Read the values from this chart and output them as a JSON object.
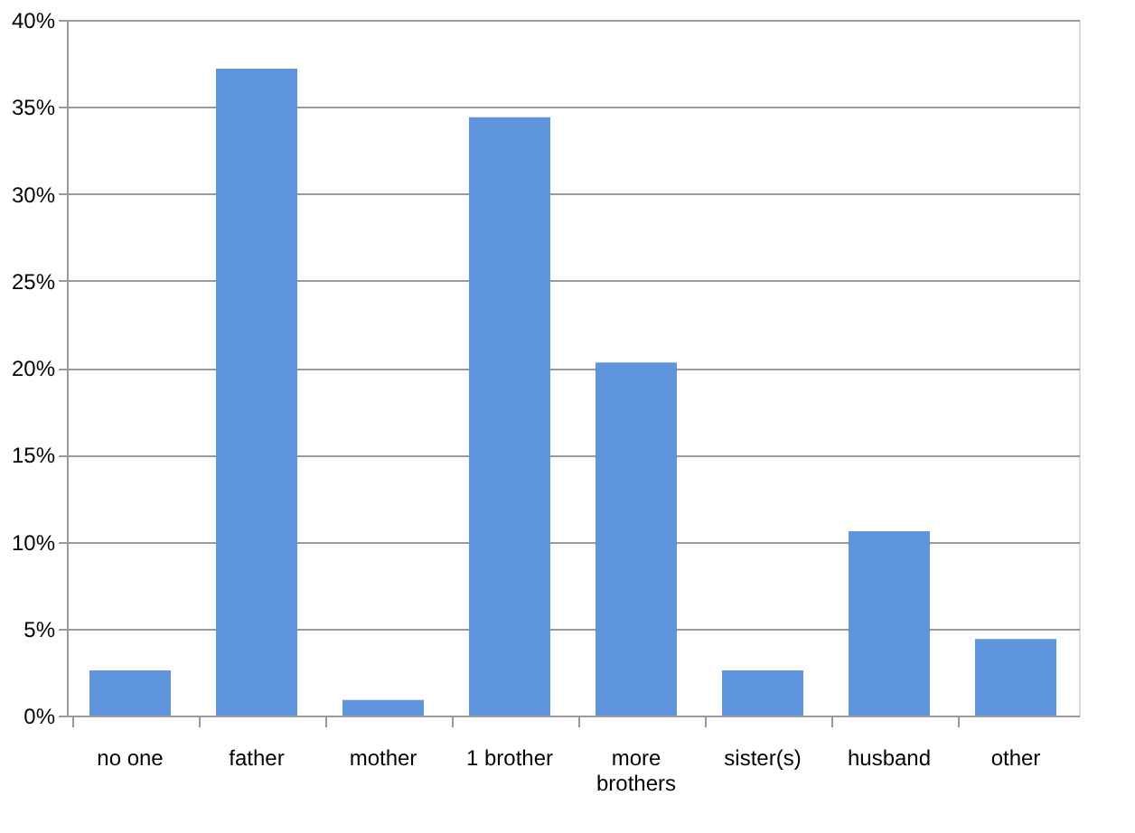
{
  "chart_data": {
    "type": "bar",
    "categories": [
      "no one",
      "father",
      "mother",
      "1 brother",
      "more brothers",
      "sister(s)",
      "husband",
      "other"
    ],
    "values": [
      2.6,
      37.2,
      0.9,
      34.4,
      20.3,
      2.6,
      10.6,
      4.4
    ],
    "color": "#5f95dc",
    "ylim": [
      0,
      40
    ],
    "yticks": [
      {
        "value": 0,
        "label": "0%"
      },
      {
        "value": 5,
        "label": "5%"
      },
      {
        "value": 10,
        "label": "10%"
      },
      {
        "value": 15,
        "label": "15%"
      },
      {
        "value": 20,
        "label": "20%"
      },
      {
        "value": 25,
        "label": "25%"
      },
      {
        "value": 30,
        "label": "30%"
      },
      {
        "value": 35,
        "label": "35%"
      },
      {
        "value": 40,
        "label": "40%"
      }
    ],
    "grid": "y"
  }
}
